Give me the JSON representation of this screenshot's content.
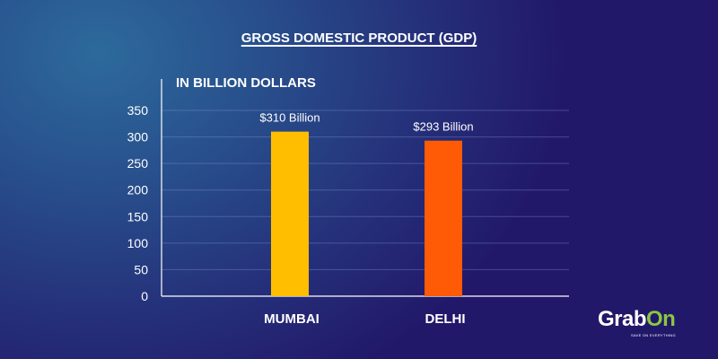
{
  "chart_data": {
    "type": "bar",
    "title": "GROSS DOMESTIC PRODUCT (GDP)",
    "ylabel": "IN BILLION DOLLARS",
    "xlabel": "",
    "categories": [
      "MUMBAI",
      "DELHI"
    ],
    "values": [
      310,
      293
    ],
    "data_labels": [
      "$310 Billion",
      "$293 Billion"
    ],
    "colors": [
      "#ffbe00",
      "#ff5a05"
    ],
    "ylim": [
      0,
      350
    ],
    "yticks": [
      0,
      50,
      100,
      150,
      200,
      250,
      300,
      350
    ],
    "grid": true
  },
  "brand": {
    "name_a": "Grab",
    "name_b": "On",
    "tagline": "SAVE ON EVERYTHING"
  }
}
